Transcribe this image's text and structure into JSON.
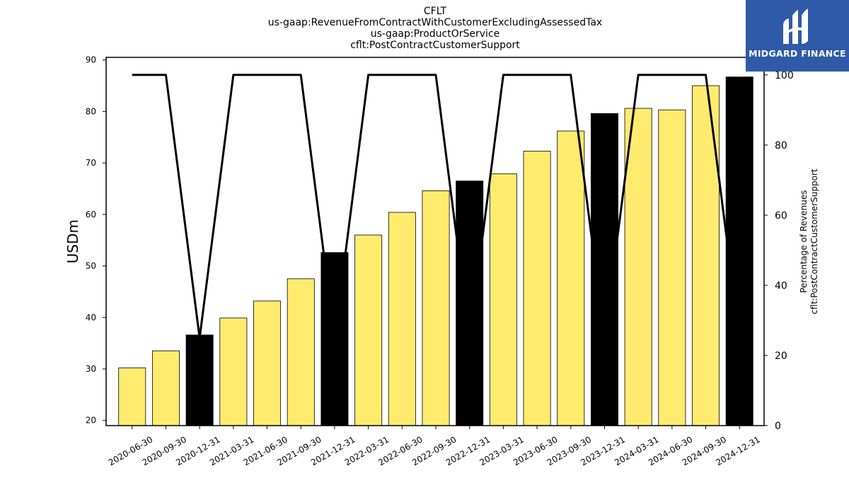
{
  "chart_data": {
    "type": "bar",
    "title_lines": [
      "CFLT",
      "us-gaap:RevenueFromContractWithCustomerExcludingAssessedTax",
      "us-gaap:ProductOrService",
      "cflt:PostContractCustomerSupport"
    ],
    "ylabel": "USDm",
    "ylabel_right": [
      "Percentage of Revenues",
      "cflt:PostContractCustomerSupport"
    ],
    "ylim": [
      19,
      90.5
    ],
    "yticks": [
      20,
      30,
      40,
      50,
      60,
      70,
      80,
      90
    ],
    "ylim_right": [
      0,
      105
    ],
    "yticks_right": [
      0,
      20,
      40,
      60,
      80,
      100
    ],
    "categories": [
      "2020-06-30",
      "2020-09-30",
      "2020-12-31",
      "2021-03-31",
      "2021-06-30",
      "2021-09-30",
      "2021-12-31",
      "2022-03-31",
      "2022-06-30",
      "2022-09-30",
      "2022-12-31",
      "2023-03-31",
      "2023-06-30",
      "2023-09-30",
      "2023-12-31",
      "2024-03-31",
      "2024-06-30",
      "2024-09-30",
      "2024-12-31"
    ],
    "values": [
      30.2,
      33.5,
      36.6,
      39.9,
      43.2,
      47.5,
      52.6,
      56.0,
      60.4,
      64.6,
      66.5,
      67.9,
      72.3,
      76.2,
      79.6,
      80.6,
      80.3,
      85.0,
      86.7
    ],
    "highlight": [
      false,
      false,
      true,
      false,
      false,
      false,
      true,
      false,
      false,
      false,
      true,
      false,
      false,
      false,
      true,
      false,
      false,
      false,
      true
    ],
    "percent_series": [
      100,
      100,
      25,
      100,
      100,
      100,
      25,
      100,
      100,
      100,
      25,
      100,
      100,
      100,
      25,
      100,
      100,
      100,
      25
    ],
    "colors": {
      "bar": "#ffeb6e",
      "bar_highlight": "#000000",
      "line": "#000000"
    },
    "legend": "none",
    "grid": false
  },
  "logo": {
    "text": "MIDGARD FINANCE",
    "color": "#2f5aa8"
  }
}
